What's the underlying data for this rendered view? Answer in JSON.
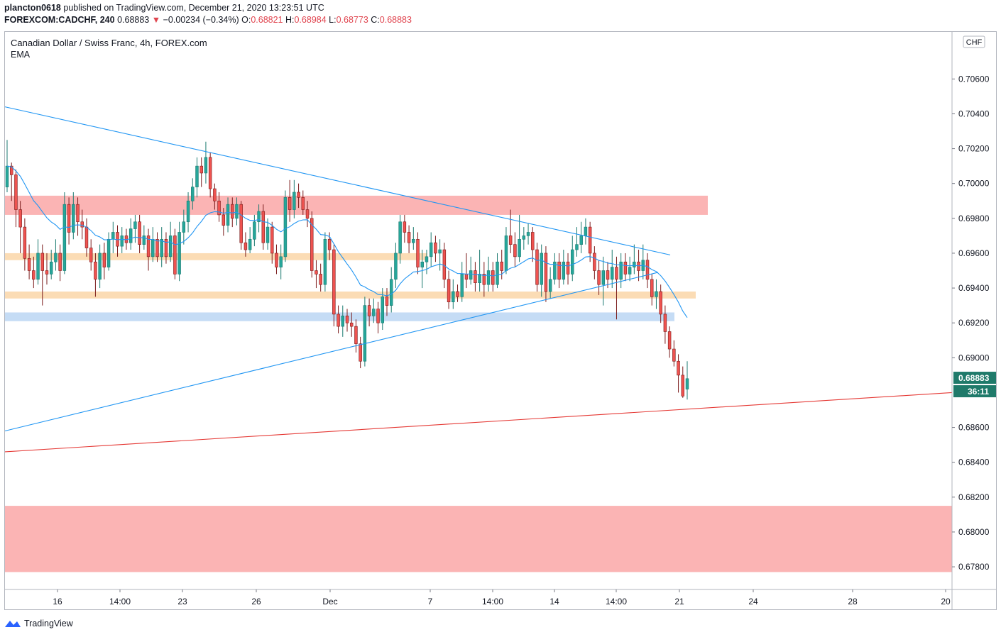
{
  "header": {
    "author": "plancton0618",
    "published_text": "published on TradingView.com, December 21, 2020 13:23:51 UTC",
    "symbol": "FOREXCOM:CADCHF, 240",
    "last": "0.68883",
    "change_arrow": "▼",
    "change": "−0.00234 (−0.34%)",
    "o_label": "O:",
    "o_value": "0.68821",
    "h_label": "H:",
    "h_value": "0.68984",
    "l_label": "L:",
    "l_value": "0.68773",
    "c_label": "C:",
    "c_value": "0.68883"
  },
  "legend": {
    "title": "Canadian Dollar / Swiss Franc, 4h, FOREX.com",
    "indicator": "EMA"
  },
  "footer": {
    "brand": "TradingView"
  },
  "colors": {
    "up": "#26a69a",
    "down": "#ef5350",
    "ema": "#2196f3",
    "trendline": "#2196f3",
    "support": "#e53935",
    "zone_red": "#fbb4b4",
    "zone_orange": "#fbdcb5",
    "zone_blue": "#c5dcf5",
    "price_tag": "#1f7a6a"
  },
  "chart_data": {
    "type": "candlestick",
    "currency_label": "CHF",
    "ylim": [
      0.6767,
      0.7087
    ],
    "y_ticks": [
      "0.70600",
      "0.70400",
      "0.70200",
      "0.70000",
      "0.69800",
      "0.69600",
      "0.69400",
      "0.69200",
      "0.69000",
      "0.68600",
      "0.68400",
      "0.68200",
      "0.68000",
      "0.67800"
    ],
    "x_ticks": [
      "16",
      "14:00",
      "23",
      "26",
      "Dec",
      "7",
      "14:00",
      "14",
      "14:00",
      "21",
      "24",
      "28",
      "20"
    ],
    "current_price": "0.68883",
    "countdown": "36:11",
    "zones": [
      {
        "name": "resistance",
        "from": 0.6982,
        "to": 0.6993,
        "color_key": "zone_red"
      },
      {
        "name": "support-orange-1",
        "from": 0.6956,
        "to": 0.696,
        "color_key": "zone_orange"
      },
      {
        "name": "support-orange-2",
        "from": 0.6934,
        "to": 0.6938,
        "color_key": "zone_orange"
      },
      {
        "name": "support-blue",
        "from": 0.6921,
        "to": 0.6926,
        "color_key": "zone_blue"
      },
      {
        "name": "demand-zone",
        "from": 0.6777,
        "to": 0.6815,
        "color_key": "zone_red"
      }
    ],
    "candles": [
      [
        0.6998,
        0.701,
        0.7025,
        0.6995
      ],
      [
        0.701,
        0.7005,
        0.7012,
        0.699
      ],
      [
        0.7005,
        0.6985,
        0.7008,
        0.6975
      ],
      [
        0.6985,
        0.6975,
        0.699,
        0.696
      ],
      [
        0.6975,
        0.6957,
        0.698,
        0.695
      ],
      [
        0.6957,
        0.695,
        0.6965,
        0.6945
      ],
      [
        0.695,
        0.6945,
        0.6958,
        0.694
      ],
      [
        0.6945,
        0.696,
        0.6968,
        0.6942
      ],
      [
        0.696,
        0.695,
        0.6965,
        0.693
      ],
      [
        0.695,
        0.6948,
        0.696,
        0.6942
      ],
      [
        0.6948,
        0.6955,
        0.6962,
        0.6945
      ],
      [
        0.6955,
        0.696,
        0.6968,
        0.695
      ],
      [
        0.696,
        0.695,
        0.6965,
        0.6944
      ],
      [
        0.695,
        0.6988,
        0.6995,
        0.6948
      ],
      [
        0.6988,
        0.6972,
        0.6992,
        0.6965
      ],
      [
        0.6972,
        0.6988,
        0.6995,
        0.6968
      ],
      [
        0.6988,
        0.6978,
        0.6992,
        0.697
      ],
      [
        0.6978,
        0.6975,
        0.6985,
        0.6968
      ],
      [
        0.6975,
        0.6963,
        0.698,
        0.6958
      ],
      [
        0.6963,
        0.6955,
        0.6968,
        0.695
      ],
      [
        0.6955,
        0.6945,
        0.696,
        0.6935
      ],
      [
        0.6945,
        0.696,
        0.6965,
        0.694
      ],
      [
        0.696,
        0.6952,
        0.6966,
        0.6945
      ],
      [
        0.6952,
        0.6968,
        0.6972,
        0.695
      ],
      [
        0.6968,
        0.6972,
        0.6978,
        0.696
      ],
      [
        0.6972,
        0.6964,
        0.6976,
        0.6958
      ],
      [
        0.6964,
        0.697,
        0.6975,
        0.696
      ],
      [
        0.697,
        0.6966,
        0.6974,
        0.6962
      ],
      [
        0.6966,
        0.6974,
        0.698,
        0.6962
      ],
      [
        0.6974,
        0.6978,
        0.6982,
        0.6966
      ],
      [
        0.6978,
        0.6965,
        0.6982,
        0.696
      ],
      [
        0.6965,
        0.697,
        0.6976,
        0.6962
      ],
      [
        0.697,
        0.6958,
        0.6974,
        0.695
      ],
      [
        0.6958,
        0.6968,
        0.6975,
        0.6955
      ],
      [
        0.6968,
        0.6958,
        0.6972,
        0.6955
      ],
      [
        0.6958,
        0.6968,
        0.6975,
        0.6952
      ],
      [
        0.6968,
        0.6958,
        0.6972,
        0.6954
      ],
      [
        0.6958,
        0.697,
        0.6978,
        0.6955
      ],
      [
        0.697,
        0.6948,
        0.6974,
        0.6945
      ],
      [
        0.6948,
        0.6972,
        0.6978,
        0.6944
      ],
      [
        0.6972,
        0.6978,
        0.6985,
        0.6965
      ],
      [
        0.6978,
        0.699,
        0.6995,
        0.6972
      ],
      [
        0.699,
        0.6998,
        0.7003,
        0.6985
      ],
      [
        0.6998,
        0.701,
        0.7015,
        0.6992
      ],
      [
        0.701,
        0.7006,
        0.7015,
        0.6998
      ],
      [
        0.7006,
        0.7015,
        0.7024,
        0.7
      ],
      [
        0.7015,
        0.6997,
        0.7018,
        0.6992
      ],
      [
        0.6997,
        0.699,
        0.7,
        0.6985
      ],
      [
        0.699,
        0.6982,
        0.6995,
        0.6978
      ],
      [
        0.6982,
        0.6976,
        0.6986,
        0.697
      ],
      [
        0.6976,
        0.6988,
        0.6992,
        0.6972
      ],
      [
        0.6988,
        0.698,
        0.6992,
        0.6975
      ],
      [
        0.698,
        0.6988,
        0.6992,
        0.6976
      ],
      [
        0.6988,
        0.6966,
        0.699,
        0.6962
      ],
      [
        0.6966,
        0.6962,
        0.6972,
        0.6958
      ],
      [
        0.6962,
        0.6968,
        0.6975,
        0.696
      ],
      [
        0.6968,
        0.6978,
        0.6982,
        0.6964
      ],
      [
        0.6978,
        0.6984,
        0.6988,
        0.6972
      ],
      [
        0.6984,
        0.6966,
        0.6988,
        0.6962
      ],
      [
        0.6966,
        0.6975,
        0.698,
        0.6962
      ],
      [
        0.6975,
        0.696,
        0.6978,
        0.6954
      ],
      [
        0.696,
        0.6952,
        0.6965,
        0.6948
      ],
      [
        0.6952,
        0.6958,
        0.6965,
        0.6945
      ],
      [
        0.6958,
        0.6992,
        0.6996,
        0.6955
      ],
      [
        0.6992,
        0.6985,
        0.7002,
        0.6978
      ],
      [
        0.6985,
        0.6995,
        0.7002,
        0.698
      ],
      [
        0.6995,
        0.6992,
        0.7,
        0.6986
      ],
      [
        0.6992,
        0.6985,
        0.6996,
        0.6982
      ],
      [
        0.6985,
        0.698,
        0.699,
        0.6975
      ],
      [
        0.698,
        0.695,
        0.6984,
        0.6946
      ],
      [
        0.695,
        0.6948,
        0.6956,
        0.694
      ],
      [
        0.6948,
        0.6942,
        0.6954,
        0.6938
      ],
      [
        0.6942,
        0.6968,
        0.6972,
        0.6938
      ],
      [
        0.6968,
        0.6962,
        0.6972,
        0.6956
      ],
      [
        0.6962,
        0.6925,
        0.6965,
        0.6918
      ],
      [
        0.6925,
        0.6918,
        0.693,
        0.6914
      ],
      [
        0.6918,
        0.6924,
        0.693,
        0.6912
      ],
      [
        0.6924,
        0.692,
        0.6928,
        0.6915
      ],
      [
        0.692,
        0.6918,
        0.6926,
        0.6912
      ],
      [
        0.6918,
        0.6908,
        0.6922,
        0.6903
      ],
      [
        0.6908,
        0.6898,
        0.6912,
        0.6894
      ],
      [
        0.6898,
        0.693,
        0.6935,
        0.6895
      ],
      [
        0.693,
        0.6924,
        0.6934,
        0.6918
      ],
      [
        0.6924,
        0.6928,
        0.6934,
        0.692
      ],
      [
        0.6928,
        0.692,
        0.6932,
        0.6914
      ],
      [
        0.692,
        0.6935,
        0.694,
        0.6916
      ],
      [
        0.6935,
        0.693,
        0.694,
        0.6924
      ],
      [
        0.693,
        0.6945,
        0.6952,
        0.6926
      ],
      [
        0.6945,
        0.696,
        0.6966,
        0.694
      ],
      [
        0.696,
        0.6978,
        0.6982,
        0.6954
      ],
      [
        0.6978,
        0.6972,
        0.6982,
        0.6966
      ],
      [
        0.6972,
        0.6966,
        0.6976,
        0.696
      ],
      [
        0.6966,
        0.6968,
        0.6975,
        0.6962
      ],
      [
        0.6968,
        0.6952,
        0.6972,
        0.6948
      ],
      [
        0.6952,
        0.6955,
        0.6962,
        0.694
      ],
      [
        0.6955,
        0.6958,
        0.6962,
        0.6948
      ],
      [
        0.6958,
        0.6966,
        0.6972,
        0.6952
      ],
      [
        0.6966,
        0.696,
        0.697,
        0.6955
      ],
      [
        0.696,
        0.6962,
        0.6968,
        0.695
      ],
      [
        0.6962,
        0.6945,
        0.6966,
        0.694
      ],
      [
        0.6945,
        0.6932,
        0.695,
        0.6928
      ],
      [
        0.6932,
        0.6938,
        0.6945,
        0.6928
      ],
      [
        0.6938,
        0.6935,
        0.6942,
        0.6932
      ],
      [
        0.6935,
        0.6948,
        0.6955,
        0.6932
      ],
      [
        0.6948,
        0.6945,
        0.696,
        0.694
      ],
      [
        0.6945,
        0.695,
        0.6958,
        0.6942
      ],
      [
        0.695,
        0.6943,
        0.6955,
        0.6938
      ],
      [
        0.6943,
        0.6948,
        0.6962,
        0.6938
      ],
      [
        0.6948,
        0.6942,
        0.6955,
        0.6935
      ],
      [
        0.6942,
        0.695,
        0.6958,
        0.6938
      ],
      [
        0.695,
        0.6942,
        0.6955,
        0.6938
      ],
      [
        0.6942,
        0.6955,
        0.696,
        0.694
      ],
      [
        0.6955,
        0.695,
        0.6962,
        0.6945
      ],
      [
        0.695,
        0.697,
        0.6975,
        0.6948
      ],
      [
        0.697,
        0.6965,
        0.6985,
        0.696
      ],
      [
        0.6965,
        0.6958,
        0.6972,
        0.6952
      ],
      [
        0.6958,
        0.6968,
        0.6982,
        0.6955
      ],
      [
        0.6968,
        0.697,
        0.6975,
        0.6962
      ],
      [
        0.697,
        0.6972,
        0.6977,
        0.6965
      ],
      [
        0.6972,
        0.6962,
        0.6975,
        0.6955
      ],
      [
        0.6962,
        0.6942,
        0.6966,
        0.6938
      ],
      [
        0.6942,
        0.696,
        0.6965,
        0.6935
      ],
      [
        0.696,
        0.6938,
        0.6964,
        0.6932
      ],
      [
        0.6938,
        0.6945,
        0.6952,
        0.6934
      ],
      [
        0.6945,
        0.6955,
        0.696,
        0.6942
      ],
      [
        0.6955,
        0.6945,
        0.696,
        0.694
      ],
      [
        0.6945,
        0.6955,
        0.6962,
        0.6942
      ],
      [
        0.6955,
        0.6948,
        0.696,
        0.6942
      ],
      [
        0.6948,
        0.6962,
        0.697,
        0.6944
      ],
      [
        0.6962,
        0.6965,
        0.6975,
        0.6958
      ],
      [
        0.6965,
        0.697,
        0.6978,
        0.696
      ],
      [
        0.697,
        0.6975,
        0.698,
        0.6965
      ],
      [
        0.6975,
        0.696,
        0.6978,
        0.6955
      ],
      [
        0.696,
        0.695,
        0.6964,
        0.6945
      ],
      [
        0.695,
        0.6942,
        0.6956,
        0.6936
      ],
      [
        0.6942,
        0.695,
        0.6958,
        0.693
      ],
      [
        0.695,
        0.6945,
        0.6955,
        0.694
      ],
      [
        0.6945,
        0.6952,
        0.6962,
        0.694
      ],
      [
        0.6952,
        0.6945,
        0.6958,
        0.6922
      ],
      [
        0.6945,
        0.6955,
        0.696,
        0.694
      ],
      [
        0.6955,
        0.6948,
        0.696,
        0.6944
      ],
      [
        0.6948,
        0.6952,
        0.6958,
        0.6944
      ],
      [
        0.6952,
        0.6955,
        0.6965,
        0.6948
      ],
      [
        0.6955,
        0.695,
        0.6962,
        0.6944
      ],
      [
        0.695,
        0.6956,
        0.6965,
        0.6945
      ],
      [
        0.6956,
        0.6945,
        0.696,
        0.694
      ],
      [
        0.6945,
        0.6935,
        0.6948,
        0.693
      ],
      [
        0.6935,
        0.6938,
        0.6945,
        0.6928
      ],
      [
        0.6938,
        0.6925,
        0.6942,
        0.692
      ],
      [
        0.6925,
        0.6915,
        0.693,
        0.6908
      ],
      [
        0.6915,
        0.6905,
        0.6918,
        0.69
      ],
      [
        0.6905,
        0.6898,
        0.691,
        0.6895
      ],
      [
        0.6898,
        0.689,
        0.6902,
        0.688
      ],
      [
        0.689,
        0.6878,
        0.6895,
        0.6877
      ],
      [
        0.6882,
        0.6888,
        0.6898,
        0.6876
      ]
    ],
    "ema_period_note": "",
    "lines": [
      {
        "name": "descending-trendline",
        "from": [
          0,
          0.7044
        ],
        "to": [
          1,
          0.6959
        ],
        "color_key": "trendline"
      },
      {
        "name": "ascending-trendline",
        "from": [
          0,
          0.6858
        ],
        "to": [
          1,
          0.6949
        ],
        "color_key": "trendline"
      },
      {
        "name": "long-support-line",
        "from": [
          0,
          0.6846
        ],
        "to": [
          1,
          0.688
        ],
        "color_key": "support"
      }
    ]
  }
}
